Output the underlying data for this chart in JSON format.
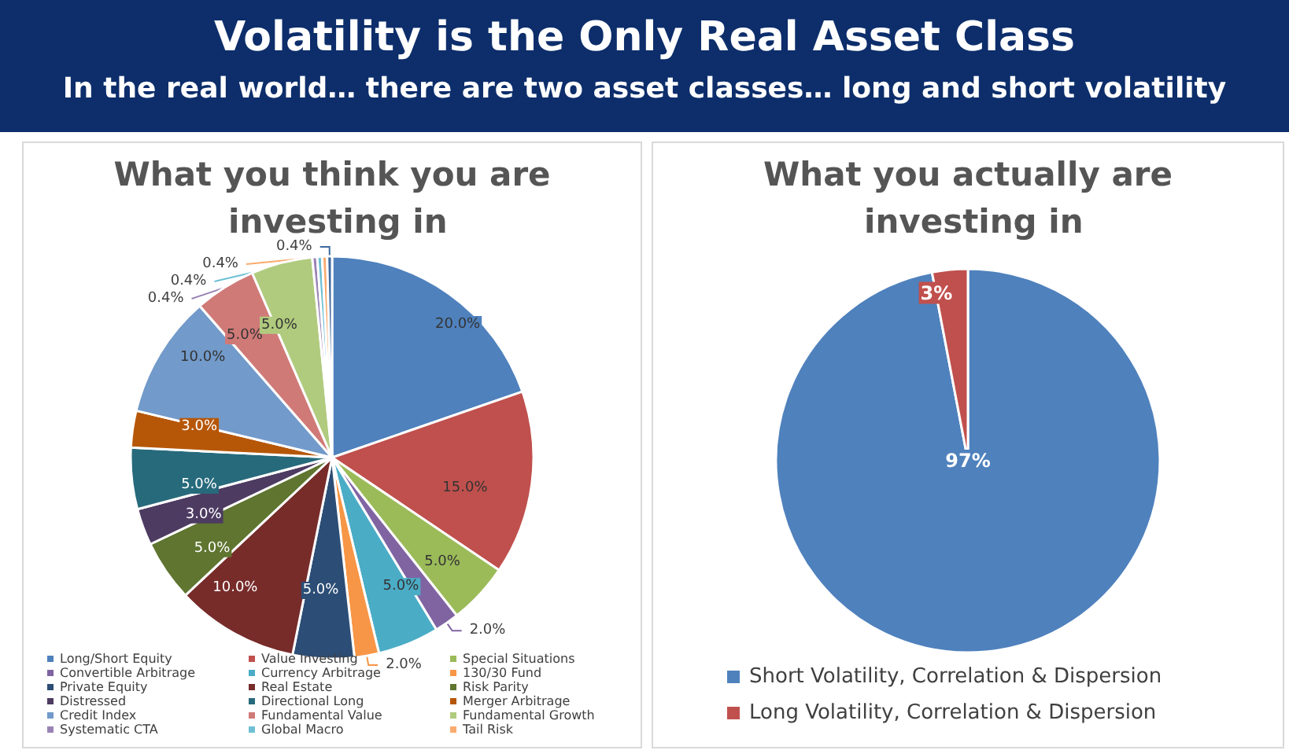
{
  "chart_data": [
    {
      "type": "pie",
      "title": "What you think you are investing in",
      "annotations": [
        "Volatility is the Only Real Asset Class",
        "In the real world… there are two asset classes… long and short volatility"
      ],
      "categories": [
        "Long/Short Equity",
        "Value Investing",
        "Special Situations",
        "Convertible Arbitrage",
        "Currency Arbitrage",
        "130/30 Fund",
        "Private Equity",
        "Real Estate",
        "Risk Parity",
        "Distressed",
        "Directional Long",
        "Merger Arbitrage",
        "Credit Index",
        "Fundamental Value",
        "Fundamental Growth",
        "Systematic CTA",
        "Global Macro",
        "Tail Risk",
        null
      ],
      "values": [
        20,
        15,
        5,
        2,
        5,
        2,
        5,
        10,
        5,
        3,
        5,
        3,
        10,
        5,
        5,
        0.4,
        0.4,
        0.4,
        0.4
      ],
      "value_labels": [
        "20.0%",
        "15.0%",
        "5.0%",
        "2.0%",
        "5.0%",
        "2.0%",
        "5.0%",
        "10.0%",
        "5.0%",
        "3.0%",
        "5.0%",
        "3.0%",
        "10.0%",
        "5.0%",
        "5.0%",
        "0.4%",
        "0.4%",
        "0.4%",
        "0.4%"
      ],
      "colors": [
        "#4f81bd",
        "#c0504d",
        "#9bbb59",
        "#8064a2",
        "#4bacc6",
        "#f79646",
        "#2c4d75",
        "#772c2a",
        "#5f7530",
        "#4d3b62",
        "#276a7c",
        "#b65708",
        "#729aca",
        "#d07a78",
        "#b0cb7e",
        "#9983b5",
        "#6fc0d5",
        "#f9ab6f",
        "#3d6aa0"
      ],
      "legend": "bottom"
    },
    {
      "type": "pie",
      "title": "What you actually are investing in",
      "categories": [
        "Short Volatility, Correlation & Dispersion",
        "Long Volatility, Correlation & Dispersion"
      ],
      "values": [
        97,
        3
      ],
      "value_labels": [
        "97%",
        "3%"
      ],
      "colors": [
        "#4f81bd",
        "#c0504d"
      ],
      "legend": "bottom"
    }
  ]
}
